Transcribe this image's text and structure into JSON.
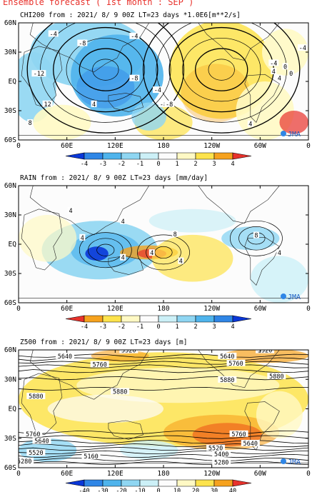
{
  "page_title": "Ensemble forecast ( 1st month : SEP )",
  "logo_text": "JMA",
  "chart_data": [
    {
      "type": "heatmap",
      "title": "CHI200 from : 2021/ 8/ 9 00Z LT=23 days  *1.0E6[m**2/s]",
      "x_ticks": [
        "0",
        "60E",
        "120E",
        "180",
        "120W",
        "60W",
        "0"
      ],
      "y_ticks": [
        "60N",
        "30N",
        "EQ",
        "30S",
        "60S"
      ],
      "colorbar": {
        "labels": [
          "-4",
          "-3",
          "-2",
          "-1",
          "0",
          "1",
          "2",
          "3",
          "4"
        ],
        "colors": [
          "#0a37d8",
          "#2f86e6",
          "#4fb4ec",
          "#8fd6f2",
          "#ccf0f7",
          "#fcfcfc",
          "#fff9c4",
          "#fde34c",
          "#f6a21e",
          "#e8322c"
        ]
      },
      "contour_labels": [
        "-4",
        "-8",
        "-12",
        "-4",
        "-8",
        "4",
        "-8",
        "12",
        "8",
        "-4",
        "4",
        "0",
        "4",
        "-4",
        "-8",
        "4",
        "0",
        "-4"
      ]
    },
    {
      "type": "heatmap",
      "title": "RAIN  from : 2021/ 8/ 9 00Z LT=23 days  [mm/day]",
      "x_ticks": [
        "0",
        "60E",
        "120E",
        "180",
        "120W",
        "60W",
        "0"
      ],
      "y_ticks": [
        "60N",
        "30N",
        "EQ",
        "30S",
        "60S"
      ],
      "colorbar": {
        "labels": [
          "-4",
          "-3",
          "-2",
          "-1",
          "0",
          "1",
          "2",
          "3",
          "4"
        ],
        "colors": [
          "#e8322c",
          "#f6a21e",
          "#fde34c",
          "#fff9c4",
          "#fcfcfc",
          "#ccf0f7",
          "#8fd6f2",
          "#4fb4ec",
          "#2f86e6",
          "#0a37d8"
        ]
      },
      "contour_labels": [
        "4",
        "4",
        "4",
        "8",
        "4",
        "8",
        "4",
        "4",
        "4"
      ]
    },
    {
      "type": "heatmap",
      "title": "Z500  from : 2021/ 8/ 9 00Z LT=23 days  [m]",
      "x_ticks": [
        "0",
        "60E",
        "120E",
        "180",
        "120W",
        "60W",
        "0"
      ],
      "y_ticks": [
        "60N",
        "30N",
        "EQ",
        "30S",
        "60S"
      ],
      "colorbar": {
        "labels": [
          "-40",
          "-30",
          "-20",
          "-10",
          "0",
          "10",
          "20",
          "30",
          "40"
        ],
        "colors": [
          "#0a37d8",
          "#2f86e6",
          "#4fb4ec",
          "#8fd6f2",
          "#ccf0f7",
          "#fcfcfc",
          "#fff9c4",
          "#fde34c",
          "#f6a21e",
          "#e8322c"
        ]
      },
      "contour_labels": [
        "5640",
        "5520",
        "5640",
        "5520",
        "5760",
        "5760",
        "5880",
        "5880",
        "5880",
        "5880",
        "5760",
        "5640",
        "5760",
        "5640",
        "5520",
        "5520",
        "5400",
        "5280",
        "5160",
        "5280"
      ]
    }
  ]
}
